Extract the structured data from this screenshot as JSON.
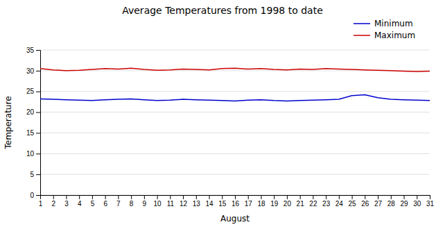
{
  "chart_data": {
    "type": "line",
    "title": "Average Temperatures from 1998 to date",
    "xlabel": "August",
    "ylabel": "Temperature",
    "x": [
      1,
      2,
      3,
      4,
      5,
      6,
      7,
      8,
      9,
      10,
      11,
      12,
      13,
      14,
      15,
      16,
      17,
      18,
      19,
      20,
      21,
      22,
      23,
      24,
      25,
      26,
      27,
      28,
      29,
      30,
      31
    ],
    "series": [
      {
        "name": "Minimum",
        "color": "#0000cc",
        "values": [
          23.2,
          23.1,
          23.0,
          22.9,
          22.8,
          23.0,
          23.1,
          23.2,
          23.0,
          22.8,
          22.9,
          23.1,
          23.0,
          22.9,
          22.8,
          22.7,
          22.9,
          23.0,
          22.8,
          22.7,
          22.8,
          22.9,
          23.0,
          23.1,
          24.0,
          24.2,
          23.5,
          23.1,
          23.0,
          22.9,
          22.8
        ]
      },
      {
        "name": "Maximum",
        "color": "#cc0000",
        "values": [
          30.5,
          30.2,
          30.0,
          30.1,
          30.3,
          30.5,
          30.4,
          30.6,
          30.3,
          30.1,
          30.2,
          30.4,
          30.3,
          30.2,
          30.5,
          30.6,
          30.4,
          30.5,
          30.3,
          30.2,
          30.4,
          30.3,
          30.5,
          30.4,
          30.3,
          30.2,
          30.1,
          30.0,
          29.9,
          29.8,
          29.9
        ]
      }
    ],
    "xlim": [
      1,
      31
    ],
    "xticks": [
      1,
      2,
      3,
      4,
      5,
      6,
      7,
      8,
      9,
      10,
      11,
      12,
      13,
      14,
      15,
      16,
      17,
      18,
      19,
      20,
      21,
      22,
      23,
      24,
      25,
      26,
      27,
      28,
      29,
      30,
      31
    ],
    "ylim": [
      0,
      35
    ],
    "yticks": [
      0,
      5,
      10,
      15,
      20,
      25,
      30,
      35
    ],
    "grid": true,
    "legend": "upper right"
  }
}
